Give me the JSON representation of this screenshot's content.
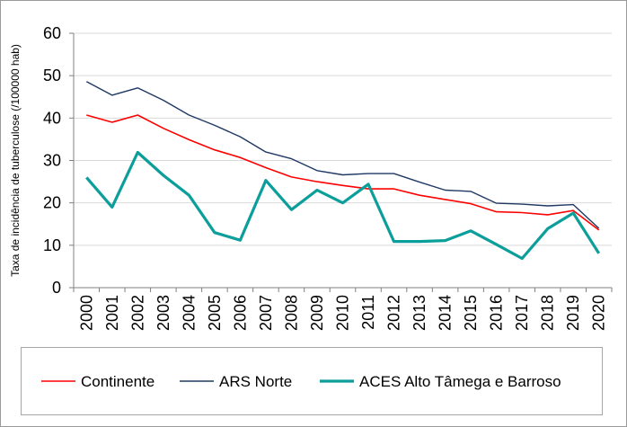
{
  "chart_data": {
    "type": "line",
    "ylabel": "Taxa de incidência de tuberculose (/100000 hab)",
    "ylim": [
      0,
      60
    ],
    "yticks": [
      "0",
      "10",
      "20",
      "30",
      "40",
      "50",
      "60"
    ],
    "grid": "horizontal",
    "legend_position": "bottom",
    "categories": [
      "2000",
      "2001",
      "2002",
      "2003",
      "2004",
      "2005",
      "2006",
      "2007",
      "2008",
      "2009",
      "2010",
      "2011",
      "2012",
      "2013",
      "2014",
      "2015",
      "2016",
      "2017",
      "2018",
      "2019",
      "2020"
    ],
    "series": [
      {
        "name": "Continente",
        "color": "#ff0000",
        "values": [
          40.7,
          39.0,
          40.7,
          37.6,
          34.9,
          32.5,
          30.7,
          28.3,
          26.1,
          25.0,
          24.1,
          23.3,
          23.3,
          21.8,
          20.8,
          19.8,
          17.9,
          17.7,
          17.2,
          18.2,
          13.6
        ]
      },
      {
        "name": "ARS Norte",
        "color": "#1f3864",
        "values": [
          48.6,
          45.4,
          47.1,
          44.2,
          40.7,
          38.3,
          35.6,
          32.0,
          30.4,
          27.6,
          26.6,
          26.9,
          26.9,
          24.9,
          23.0,
          22.7,
          19.9,
          19.7,
          19.3,
          19.6,
          14.0
        ]
      },
      {
        "name": "ACES Alto Tâmega e Barroso",
        "color": "#0b9e9a",
        "values": [
          26.0,
          19.0,
          31.9,
          26.5,
          21.8,
          13.0,
          11.2,
          25.3,
          18.4,
          23.0,
          20.0,
          24.4,
          10.9,
          10.9,
          11.1,
          13.4,
          10.2,
          6.9,
          13.9,
          17.6,
          8.1
        ]
      }
    ]
  }
}
